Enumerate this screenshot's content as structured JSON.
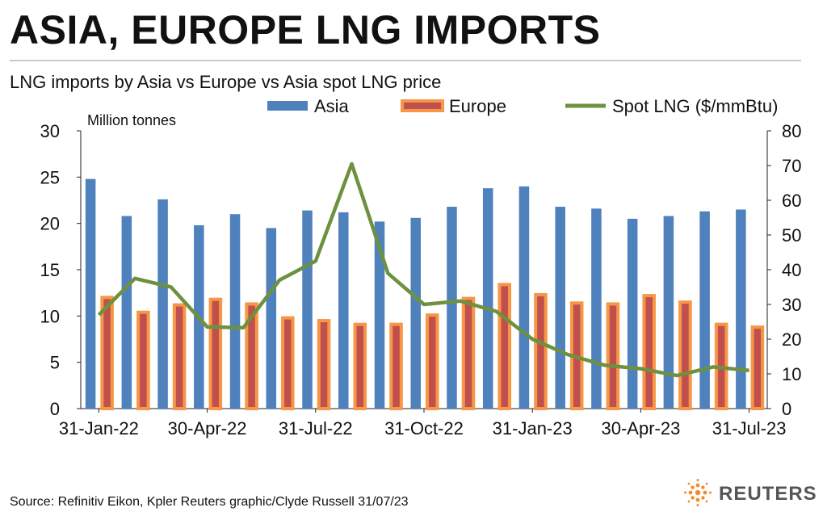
{
  "header": {
    "title": "ASIA, EUROPE LNG IMPORTS",
    "subtitle": "LNG imports by Asia vs Europe vs Asia spot LNG price"
  },
  "footer": {
    "source": "Source: Refinitiv Eikon, Kpler    Reuters graphic/Clyde Russell 31/07/23",
    "brand": "REUTERS"
  },
  "colors": {
    "asia": "#4f81bd",
    "europe_fill": "#c0504d",
    "europe_border": "#f79646",
    "spot": "#6e9140",
    "brand_orange": "#f28c28"
  },
  "chart_data": {
    "type": "bar",
    "left_axis_unit": "Million tonnes",
    "ylim": [
      0,
      30
    ],
    "yticks": [
      0,
      5,
      10,
      15,
      20,
      25,
      30
    ],
    "y2lim": [
      0,
      80
    ],
    "y2ticks": [
      0,
      10,
      20,
      30,
      40,
      50,
      60,
      70,
      80
    ],
    "categories": [
      "Jan-22",
      "Feb-22",
      "Mar-22",
      "Apr-22",
      "May-22",
      "Jun-22",
      "Jul-22",
      "Aug-22",
      "Sep-22",
      "Oct-22",
      "Nov-22",
      "Dec-22",
      "Jan-23",
      "Feb-23",
      "Mar-23",
      "Apr-23",
      "May-23",
      "Jun-23",
      "Jul-23"
    ],
    "xtick_labels": [
      {
        "index": 0,
        "label": "31-Jan-22"
      },
      {
        "index": 3,
        "label": "30-Apr-22"
      },
      {
        "index": 6,
        "label": "31-Jul-22"
      },
      {
        "index": 9,
        "label": "31-Oct-22"
      },
      {
        "index": 12,
        "label": "31-Jan-23"
      },
      {
        "index": 15,
        "label": "30-Apr-23"
      },
      {
        "index": 18,
        "label": "31-Jul-23"
      }
    ],
    "series": [
      {
        "name": "Asia",
        "type": "bar",
        "axis": "left",
        "values": [
          24.8,
          20.8,
          22.6,
          19.8,
          21.0,
          19.5,
          21.4,
          21.2,
          20.2,
          20.6,
          21.8,
          23.8,
          24.0,
          21.8,
          21.6,
          20.5,
          20.8,
          21.3,
          21.5
        ]
      },
      {
        "name": "Europe",
        "type": "bar",
        "axis": "left",
        "values": [
          12.0,
          10.4,
          11.2,
          11.8,
          11.3,
          9.8,
          9.5,
          9.1,
          9.1,
          10.1,
          11.9,
          13.4,
          12.3,
          11.4,
          11.3,
          12.2,
          11.5,
          9.1,
          8.8
        ]
      },
      {
        "name": "Spot LNG ($/mmBtu)",
        "type": "line",
        "axis": "right",
        "values": [
          27.0,
          37.5,
          35.0,
          23.5,
          23.3,
          37.0,
          42.5,
          70.5,
          39.0,
          30.0,
          31.0,
          28.0,
          20.0,
          15.5,
          12.5,
          11.5,
          9.5,
          12.0,
          11.0
        ]
      }
    ]
  }
}
